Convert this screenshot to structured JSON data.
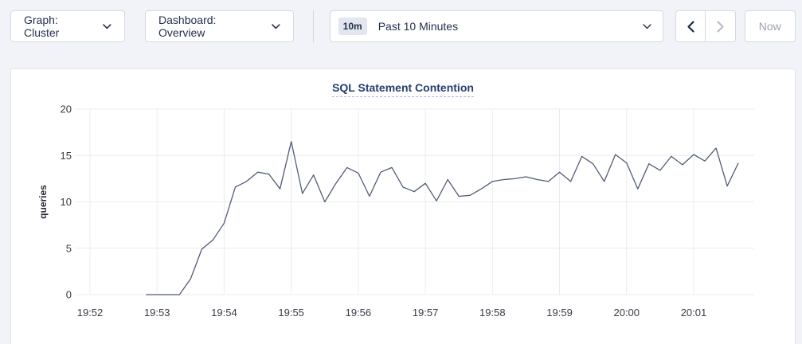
{
  "toolbar": {
    "graph_dropdown": {
      "label": "Graph: Cluster",
      "icon": "chevron-down"
    },
    "dashboard_dropdown": {
      "label": "Dashboard: Overview",
      "icon": "chevron-down"
    },
    "time_picker": {
      "badge": "10m",
      "label": "Past 10 Minutes",
      "icon": "chevron-down"
    },
    "prev_button_icon": "chevron-left",
    "next_button_icon": "chevron-right",
    "now_button_label": "Now"
  },
  "colors": {
    "page_bg": "#f1f3f8",
    "control_text": "#24304d",
    "disabled_text": "#9ba3b4",
    "disabled_icon": "#b6bdc9",
    "title_text": "#253e6e",
    "grid": "#ececf0",
    "tick_text": "#373c45",
    "line": "#525c78"
  },
  "chart_data": {
    "type": "line",
    "title": "SQL Statement Contention",
    "ylabel": "queries",
    "ylim": [
      0,
      20
    ],
    "yticks": [
      0,
      5,
      10,
      15,
      20
    ],
    "x_tick_labels": [
      "19:52",
      "19:53",
      "19:54",
      "19:55",
      "19:56",
      "19:57",
      "19:58",
      "19:59",
      "20:00",
      "20:01"
    ],
    "grid": true,
    "legend": "none",
    "series": [
      {
        "name": "queries",
        "color": "#525c78",
        "points": [
          [
            "19:52:50",
            0
          ],
          [
            "19:53:00",
            0
          ],
          [
            "19:53:10",
            0
          ],
          [
            "19:53:20",
            0
          ],
          [
            "19:53:30",
            1.7
          ],
          [
            "19:53:40",
            4.9
          ],
          [
            "19:53:50",
            5.9
          ],
          [
            "19:54:00",
            7.7
          ],
          [
            "19:54:10",
            11.6
          ],
          [
            "19:54:20",
            12.2
          ],
          [
            "19:54:30",
            13.2
          ],
          [
            "19:54:40",
            13.0
          ],
          [
            "19:54:50",
            11.4
          ],
          [
            "19:55:00",
            16.5
          ],
          [
            "19:55:10",
            10.9
          ],
          [
            "19:55:20",
            12.9
          ],
          [
            "19:55:30",
            10.0
          ],
          [
            "19:55:40",
            12.0
          ],
          [
            "19:55:50",
            13.7
          ],
          [
            "19:56:00",
            13.1
          ],
          [
            "19:56:10",
            10.6
          ],
          [
            "19:56:20",
            13.2
          ],
          [
            "19:56:30",
            13.7
          ],
          [
            "19:56:40",
            11.6
          ],
          [
            "19:56:50",
            11.1
          ],
          [
            "19:57:00",
            12.0
          ],
          [
            "19:57:10",
            10.1
          ],
          [
            "19:57:20",
            12.4
          ],
          [
            "19:57:30",
            10.6
          ],
          [
            "19:57:40",
            10.7
          ],
          [
            "19:57:50",
            11.4
          ],
          [
            "19:58:00",
            12.2
          ],
          [
            "19:58:10",
            12.4
          ],
          [
            "19:58:20",
            12.5
          ],
          [
            "19:58:30",
            12.7
          ],
          [
            "19:58:40",
            12.4
          ],
          [
            "19:58:50",
            12.2
          ],
          [
            "19:59:00",
            13.2
          ],
          [
            "19:59:10",
            12.2
          ],
          [
            "19:59:20",
            14.9
          ],
          [
            "19:59:30",
            14.1
          ],
          [
            "19:59:40",
            12.2
          ],
          [
            "19:59:50",
            15.1
          ],
          [
            "20:00:00",
            14.2
          ],
          [
            "20:00:10",
            11.4
          ],
          [
            "20:00:20",
            14.1
          ],
          [
            "20:00:30",
            13.4
          ],
          [
            "20:00:40",
            14.9
          ],
          [
            "20:00:50",
            14.0
          ],
          [
            "20:01:00",
            15.1
          ],
          [
            "20:01:10",
            14.4
          ],
          [
            "20:01:20",
            15.8
          ],
          [
            "20:01:30",
            11.7
          ],
          [
            "20:01:40",
            14.2
          ]
        ]
      }
    ]
  }
}
